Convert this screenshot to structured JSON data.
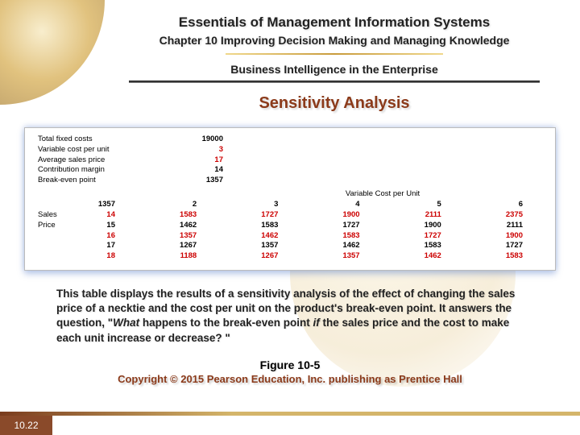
{
  "header": {
    "title_main": "Essentials of Management Information Systems",
    "title_chapter": "Chapter 10 Improving Decision Making and Managing Knowledge",
    "subtitle1": "Business Intelligence in the Enterprise",
    "subtitle2": "Sensitivity Analysis"
  },
  "top_block": {
    "rows": [
      {
        "label": "Total fixed costs",
        "value": "19000",
        "color": "black"
      },
      {
        "label": "Variable cost per unit",
        "value": "3",
        "color": "red"
      },
      {
        "label": "Average sales price",
        "value": "17",
        "color": "red"
      },
      {
        "label": "Contribution margin",
        "value": "14",
        "color": "black"
      },
      {
        "label": "Break-even point",
        "value": "1357",
        "color": "black"
      }
    ]
  },
  "grid": {
    "var_header": "Variable Cost per Unit",
    "left_labels": [
      "Sales",
      "Price"
    ],
    "col_headers": [
      "2",
      "3",
      "4",
      "5",
      "6"
    ],
    "first_col_header": "1357",
    "rows": [
      {
        "label": "14",
        "first": "1583",
        "cells": [
          "1727",
          "1900",
          "2111",
          "2375"
        ],
        "color": "red"
      },
      {
        "label": "15",
        "first": "1462",
        "cells": [
          "1583",
          "1727",
          "1900",
          "2111"
        ],
        "color": "black"
      },
      {
        "label": "16",
        "first": "1357",
        "cells": [
          "1462",
          "1583",
          "1727",
          "1900"
        ],
        "color": "red"
      },
      {
        "label": "17",
        "first": "1267",
        "cells": [
          "1357",
          "1462",
          "1583",
          "1727"
        ],
        "color": "black"
      },
      {
        "label": "18",
        "first": "1188",
        "cells": [
          "1267",
          "1357",
          "1462",
          "1583"
        ],
        "color": "red"
      }
    ]
  },
  "caption": {
    "pre": "This table displays the results of a sensitivity analysis of the effect of changing the sales price of a necktie and the cost per unit on the product's break-even point. It answers the question, \"",
    "em1": "What",
    "mid": " happens to the break-even point ",
    "em2": "if",
    "post": " the sales price and the cost to make each unit increase or decrease? \""
  },
  "figure_label": "Figure 10-5",
  "copyright": "Copyright © 2015 Pearson Education, Inc. publishing as Prentice Hall",
  "slide_number": "10.22",
  "colors": {
    "accent_brown": "#8b3a1a",
    "red": "#c00",
    "black": "#000"
  }
}
